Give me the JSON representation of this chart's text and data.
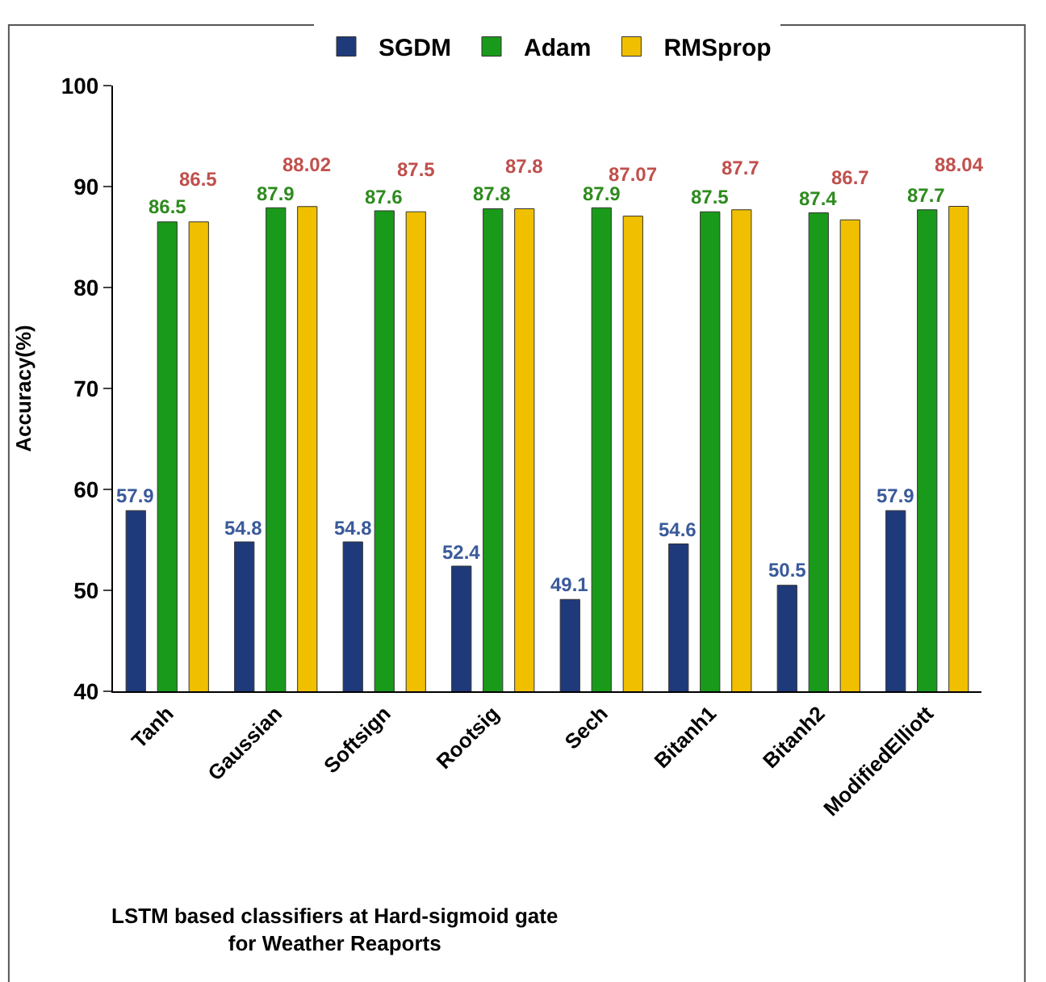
{
  "chart_data": {
    "type": "bar",
    "title": "LSTM based classifiers at Hard-sigmoid gate\nfor Weather Reaports",
    "ylabel": "Accuracy(%)",
    "categories": [
      "Tanh",
      "Gaussian",
      "Softsign",
      "Rootsig",
      "Sech",
      "Bitanh1",
      "Bitanh2",
      "ModifiedElliott"
    ],
    "series": [
      {
        "name": "SGDM",
        "color": "#1f3a7a",
        "values": [
          57.9,
          54.8,
          54.8,
          52.4,
          49.1,
          54.6,
          50.5,
          57.9
        ]
      },
      {
        "name": "Adam",
        "color": "#1a9a1a",
        "values": [
          86.5,
          87.9,
          87.6,
          87.8,
          87.9,
          87.5,
          87.4,
          87.7
        ]
      },
      {
        "name": "RMSprop",
        "color": "#f0c000",
        "values": [
          86.5,
          88.02,
          87.5,
          87.8,
          87.07,
          87.7,
          86.7,
          88.04
        ]
      }
    ],
    "ylim": [
      40,
      100
    ],
    "yticks": [
      40,
      50,
      60,
      70,
      80,
      90,
      100
    ],
    "legend": "top",
    "data_labels": true
  }
}
